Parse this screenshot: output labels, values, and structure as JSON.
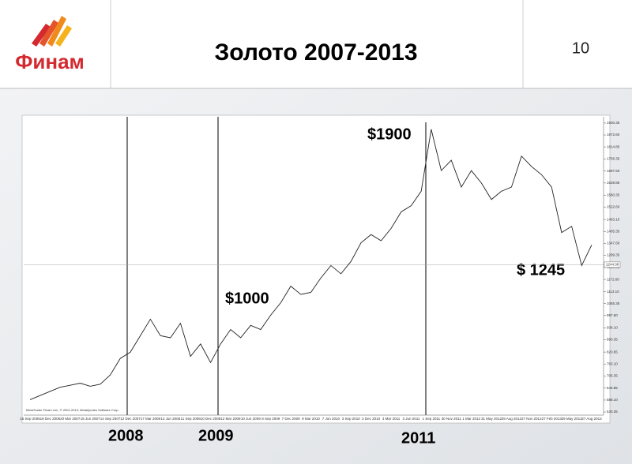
{
  "header": {
    "logo_text": "Финам",
    "title": "Золото 2007-2013",
    "page_number": "10"
  },
  "chart_data": {
    "type": "line",
    "categories": [
      "15 Sep 2006",
      null,
      "18 Dec 2006",
      null,
      "20 Mar 2007",
      null,
      "18 Jun 2007",
      null,
      "14 Sep 2007",
      null,
      "12 Dec 2007",
      null,
      "17 Mar 2008",
      null,
      "13 Jun 2008",
      null,
      "11 Sep 2008",
      null,
      "10 Dec 2008",
      null,
      "12 Mar 2009",
      null,
      "10 Jun 2009",
      null,
      "8 Sep 2009",
      null,
      "7 Dec 2009",
      null,
      "9 Mar 2010",
      null,
      "7 Jun 2010",
      null,
      "3 Sep 2010",
      null,
      "2 Dec 2010",
      null,
      "4 Mar 2011",
      null,
      "3 Jun 2011",
      null,
      "1 Sep 2011",
      null,
      "30 Nov 2011",
      null,
      "1 Mar 2012",
      null,
      "31 May 2012",
      null,
      "29 Aug 2012",
      null,
      "27 Nov 2012",
      null,
      "27 Feb 2013",
      null,
      "29 May 2013",
      null,
      "27 Aug 2013"
    ],
    "series": [
      {
        "name": null,
        "color": "#222222",
        "values": [
          590,
          610,
          630,
          650,
          660,
          670,
          655,
          665,
          710,
          790,
          820,
          900,
          980,
          900,
          890,
          960,
          800,
          860,
          770,
          860,
          930,
          890,
          950,
          930,
          1000,
          1060,
          1140,
          1100,
          1110,
          1180,
          1240,
          1200,
          1260,
          1350,
          1390,
          1360,
          1420,
          1500,
          1530,
          1600,
          1900,
          1700,
          1750,
          1620,
          1700,
          1640,
          1560,
          1600,
          1620,
          1770,
          1720,
          1680,
          1620,
          1400,
          1430,
          1240,
          1340
        ]
      }
    ],
    "ylim": [
      519,
      1953
    ],
    "yticks": [
      {
        "value": 530.35,
        "label": "530.35"
      },
      {
        "value": 588.1,
        "label": "588.10"
      },
      {
        "value": 645.85,
        "label": "645.85"
      },
      {
        "value": 705.35,
        "label": "705.35"
      },
      {
        "value": 763.1,
        "label": "763.10"
      },
      {
        "value": 820.65,
        "label": "820.65"
      },
      {
        "value": 880.35,
        "label": "880.35"
      },
      {
        "value": 938.1,
        "label": "938.10"
      },
      {
        "value": 997.6,
        "label": "997.60"
      },
      {
        "value": 1055.35,
        "label": "1055.35"
      },
      {
        "value": 1113.1,
        "label": "1113.10"
      },
      {
        "value": 1172.6,
        "label": "1172.60"
      },
      {
        "value": 1230.35,
        "label": "1230.35"
      },
      {
        "value": 1289.35,
        "label": "1289.35"
      },
      {
        "value": 1347.6,
        "label": "1347.60"
      },
      {
        "value": 1405.35,
        "label": "1405.35"
      },
      {
        "value": 1463.1,
        "label": "1463.10"
      },
      {
        "value": 1522.6,
        "label": "1522.60"
      },
      {
        "value": 1580.35,
        "label": "1580.35"
      },
      {
        "value": 1639.85,
        "label": "1639.85"
      },
      {
        "value": 1697.6,
        "label": "1697.60"
      },
      {
        "value": 1756.35,
        "label": "1756.35"
      },
      {
        "value": 1814.85,
        "label": "1814.85"
      },
      {
        "value": 1872.6,
        "label": "1872.60"
      },
      {
        "value": 1930.35,
        "label": "1930.35"
      }
    ],
    "current_price": {
      "value": 1244.08,
      "label": "1244.08"
    },
    "grid": false,
    "copyright": "MetaTrader Finam Ltd., © 2001-2013, MetaQuotes Software Corp.",
    "annotations": [
      "$1900",
      "$1000",
      "$ 1245",
      "2008",
      "2009",
      "2011"
    ]
  }
}
